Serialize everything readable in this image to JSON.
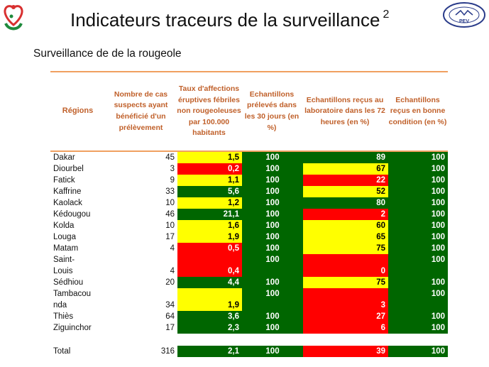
{
  "title": "Indicateurs traceurs  de la surveillance",
  "title_sup": "2",
  "subtitle": "Surveillance de de la rougeole",
  "logos": {
    "left": "mother-child-health-logo",
    "right_text": "PEV"
  },
  "headers": [
    "Régions",
    "Nombre de cas suspects ayant bénéficié d'un prélèvement",
    "Taux d'affections éruptives fébriles non rougeoleuses par 100.000 habitants",
    "Echantillons prélevés dans les 30 jours (en %)",
    "Echantillons reçus au laboratoire dans les 72 heures (en %)",
    "Echantillons reçus en bonne condition (en %)"
  ],
  "colors": {
    "yellow": "#ffff00",
    "red": "#ff0000",
    "green": "#006600",
    "header": "#c0602a",
    "rule": "#f0a060"
  },
  "rows": [
    {
      "region": "Dakar",
      "cases": "45",
      "taux": "1,5",
      "taux_color": "yellow",
      "ech": "100",
      "lab": "89",
      "lab_color": "green",
      "cond": "100"
    },
    {
      "region": "Diourbel",
      "cases": "3",
      "taux": "0,2",
      "taux_color": "red",
      "ech": "100",
      "lab": "67",
      "lab_color": "yellow",
      "cond": "100"
    },
    {
      "region": "Fatick",
      "cases": "9",
      "taux": "1,1",
      "taux_color": "yellow",
      "ech": "100",
      "lab": "22",
      "lab_color": "red",
      "cond": "100"
    },
    {
      "region": "Kaffrine",
      "cases": "33",
      "taux": "5,6",
      "taux_color": "green",
      "ech": "100",
      "lab": "52",
      "lab_color": "yellow",
      "cond": "100"
    },
    {
      "region": "Kaolack",
      "cases": "10",
      "taux": "1,2",
      "taux_color": "yellow",
      "ech": "100",
      "lab": "80",
      "lab_color": "green",
      "cond": "100"
    },
    {
      "region": "Kédougou",
      "cases": "46",
      "taux": "21,1",
      "taux_color": "green",
      "ech": "100",
      "lab": "2",
      "lab_color": "red",
      "cond": "100"
    },
    {
      "region": "Kolda",
      "cases": "10",
      "taux": "1,6",
      "taux_color": "yellow",
      "ech": "100",
      "lab": "60",
      "lab_color": "yellow",
      "cond": "100"
    },
    {
      "region": "Louga",
      "cases": "17",
      "taux": "1,9",
      "taux_color": "yellow",
      "ech": "100",
      "lab": "65",
      "lab_color": "yellow",
      "cond": "100"
    },
    {
      "region": "Matam",
      "cases": "4",
      "taux": "0,5",
      "taux_color": "red",
      "ech": "100",
      "lab": "75",
      "lab_color": "yellow",
      "cond": "100"
    },
    {
      "region": "Saint-",
      "region2": "Louis",
      "cases": "4",
      "taux": "0,4",
      "taux_color": "red",
      "ech": "100",
      "lab": "0",
      "lab_color": "red",
      "cond": "100"
    },
    {
      "region": "Sédhiou",
      "cases": "20",
      "taux": "4,4",
      "taux_color": "green",
      "ech": "100",
      "lab": "75",
      "lab_color": "yellow",
      "cond": "100"
    },
    {
      "region": "Tambacou",
      "region2": "nda",
      "cases": "34",
      "taux": "1,9",
      "taux_color": "yellow",
      "ech": "100",
      "lab": "3",
      "lab_color": "red",
      "cond": "100"
    },
    {
      "region": "Thiès",
      "cases": "64",
      "taux": "3,6",
      "taux_color": "green",
      "ech": "100",
      "lab": "27",
      "lab_color": "red",
      "cond": "100"
    },
    {
      "region": "Ziguinchor",
      "cases": "17",
      "taux": "2,3",
      "taux_color": "green",
      "ech": "100",
      "lab": "6",
      "lab_color": "red",
      "cond": "100"
    }
  ],
  "total": {
    "region": "Total",
    "cases": "316",
    "taux": "2,1",
    "taux_color": "green",
    "ech": "100",
    "lab": "39",
    "lab_color": "red",
    "cond": "100"
  }
}
